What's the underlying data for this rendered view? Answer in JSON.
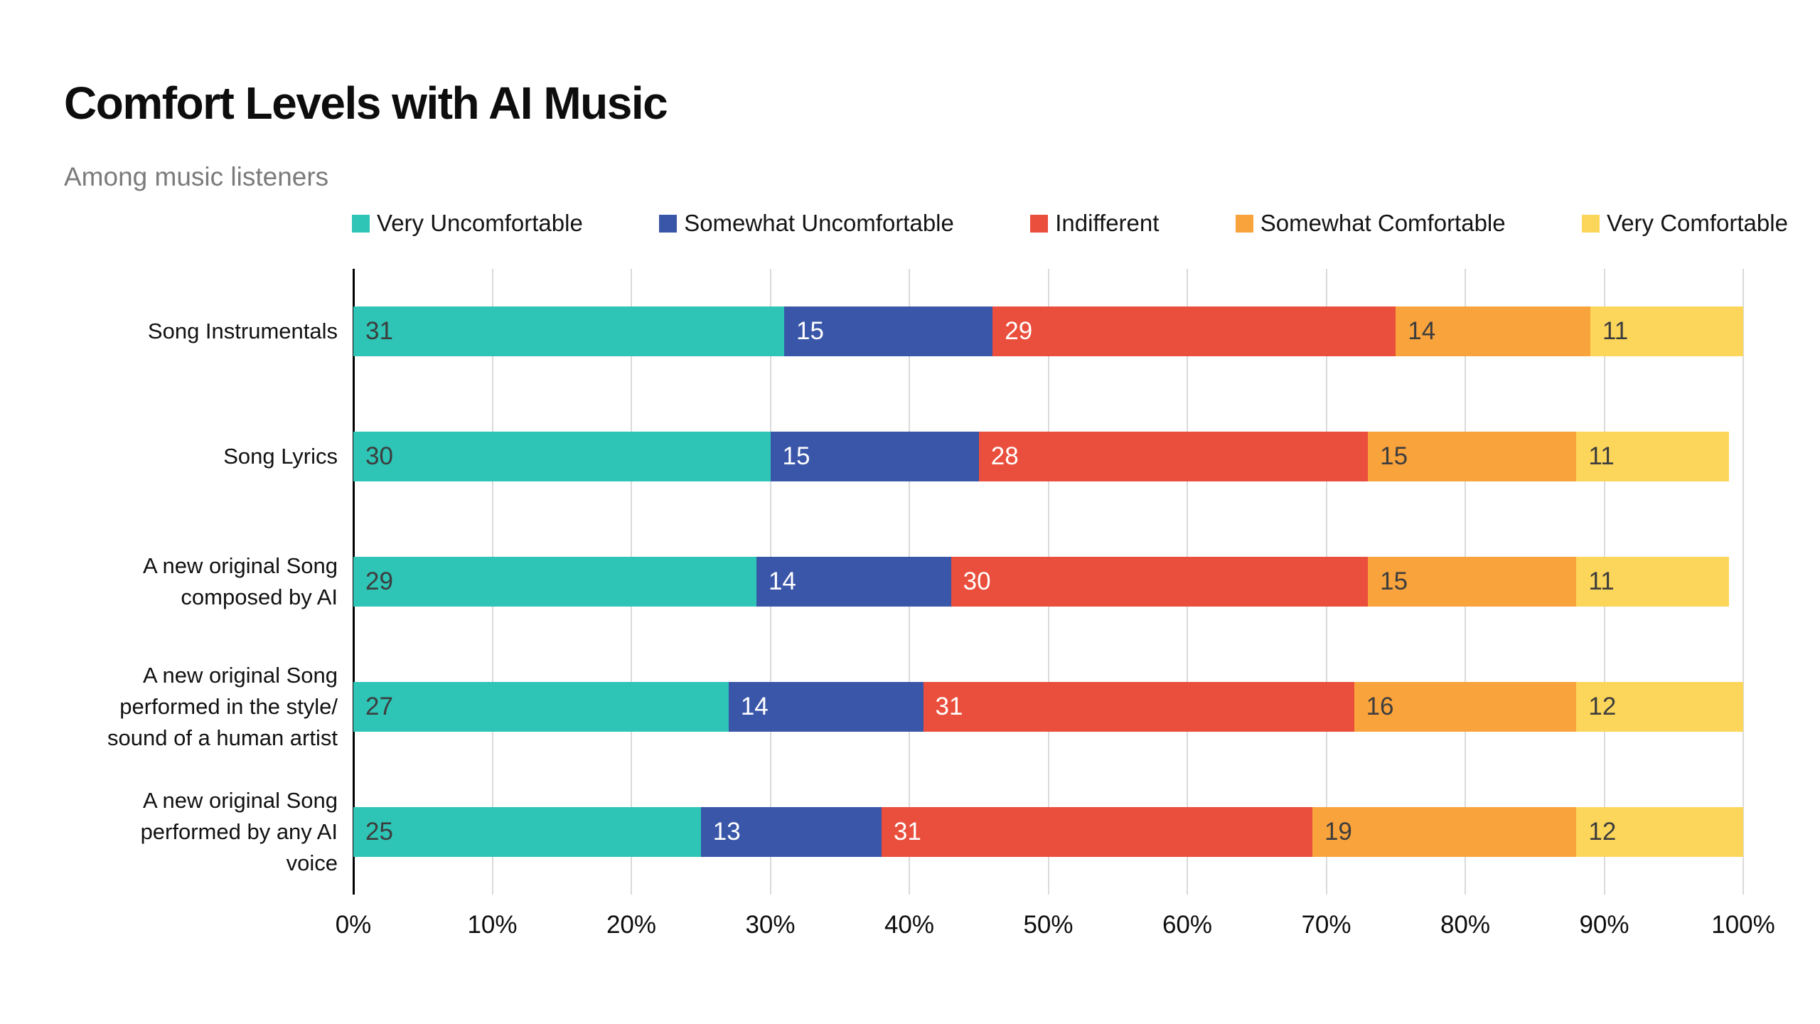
{
  "title": "Comfort Levels with AI Music",
  "subtitle": "Among music listeners",
  "colors": {
    "background": "#ffffff",
    "title_text": "#0d0d0d",
    "subtitle_text": "#7b7b7b",
    "axis_line": "#000000",
    "gridline": "#dadada",
    "dark_value_text": "#3d3d3d",
    "light_value_text": "#ffffff"
  },
  "chart_data": {
    "type": "bar",
    "orientation": "horizontal",
    "stacked": true,
    "title": "Comfort Levels with AI Music",
    "subtitle": "Among music listeners",
    "legend_position": "top",
    "grid": true,
    "xlim": [
      0,
      100
    ],
    "x_ticks": [
      "0%",
      "10%",
      "20%",
      "30%",
      "40%",
      "50%",
      "60%",
      "70%",
      "80%",
      "90%",
      "100%"
    ],
    "categories": [
      "Song Instrumentals",
      "Song Lyrics",
      "A new original Song composed by AI",
      "A new original Song performed in the style/ sound of a human artist",
      "A new original Song performed by any AI voice"
    ],
    "category_lines": [
      [
        "Song Instrumentals"
      ],
      [
        "Song Lyrics"
      ],
      [
        "A new original Song",
        "composed by AI"
      ],
      [
        "A new original Song",
        "performed in the style/",
        "sound of a human artist"
      ],
      [
        "A new original Song",
        "performed by any AI",
        "voice"
      ]
    ],
    "series": [
      {
        "name": "Very Uncomfortable",
        "color": "#2ec4b6",
        "value_text_color": "#3d3d3d",
        "values": [
          31,
          30,
          29,
          27,
          25
        ]
      },
      {
        "name": "Somewhat Uncomfortable",
        "color": "#3a56a8",
        "value_text_color": "#ffffff",
        "values": [
          15,
          15,
          14,
          14,
          13
        ]
      },
      {
        "name": "Indifferent",
        "color": "#ea4e3c",
        "value_text_color": "#ffffff",
        "values": [
          29,
          28,
          30,
          31,
          31
        ]
      },
      {
        "name": "Somewhat Comfortable",
        "color": "#f9a33d",
        "value_text_color": "#3d3d3d",
        "values": [
          14,
          15,
          15,
          16,
          19
        ]
      },
      {
        "name": "Very Comfortable",
        "color": "#fcd65b",
        "value_text_color": "#3d3d3d",
        "values": [
          11,
          11,
          11,
          12,
          12
        ]
      }
    ]
  }
}
